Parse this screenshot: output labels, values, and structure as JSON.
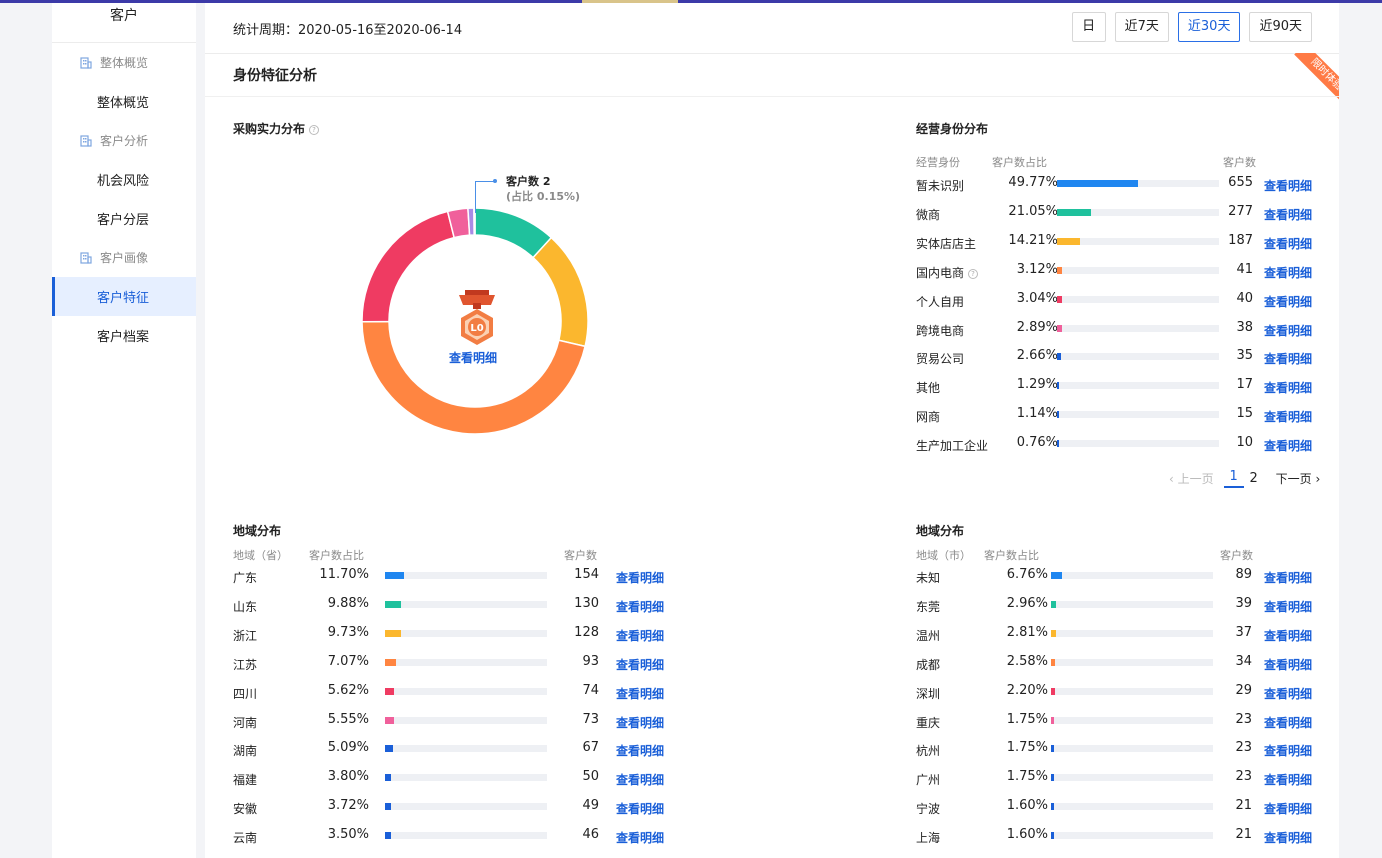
{
  "sidebar": {
    "title": "客户",
    "items": [
      {
        "label": "整体概览",
        "type": "group"
      },
      {
        "label": "整体概览",
        "type": "link"
      },
      {
        "label": "客户分析",
        "type": "group"
      },
      {
        "label": "机会风险",
        "type": "link"
      },
      {
        "label": "客户分层",
        "type": "link"
      },
      {
        "label": "客户画像",
        "type": "group"
      },
      {
        "label": "客户特征",
        "type": "link",
        "active": true
      },
      {
        "label": "客户档案",
        "type": "link"
      }
    ]
  },
  "header": {
    "period_label": "统计周期：2020-05-16至2020-06-14",
    "buttons": [
      "日",
      "近7天",
      "近30天",
      "近90天"
    ],
    "active_button": "近30天"
  },
  "section": {
    "title": "身份特征分析",
    "ribbon": "限时体验"
  },
  "purchase": {
    "title": "采购实力分布",
    "callout_count": "客户数 2",
    "callout_ratio": "(占比 0.15%)",
    "center_link": "查看明细",
    "badge_text": "L0"
  },
  "chart_data": {
    "type": "pie",
    "title": "采购实力分布",
    "slices": [
      {
        "color": "#1fc19d",
        "value": 11.8
      },
      {
        "color": "#fbb72e",
        "value": 16.8
      },
      {
        "color": "#ff8541",
        "value": 46.3
      },
      {
        "color": "#ef3b62",
        "value": 21.2
      },
      {
        "color": "#f0609b",
        "value": 2.9
      },
      {
        "color": "#a98be5",
        "value": 0.85
      },
      {
        "color": "#4a8fe7",
        "value": 0.15
      }
    ]
  },
  "identity": {
    "title": "经营身份分布",
    "headers": {
      "name": "经营身份",
      "pct": "客户数占比",
      "count": "客户数"
    },
    "link_label": "查看明细",
    "rows": [
      {
        "name": "暂未识别",
        "pct": "49.77%",
        "ratio": 0.4977,
        "count": "655",
        "color": "#1f86f0"
      },
      {
        "name": "微商",
        "pct": "21.05%",
        "ratio": 0.2105,
        "count": "277",
        "color": "#1fc19d"
      },
      {
        "name": "实体店店主",
        "pct": "14.21%",
        "ratio": 0.1421,
        "count": "187",
        "color": "#fbb72e"
      },
      {
        "name": "国内电商",
        "pct": "3.12%",
        "ratio": 0.0312,
        "count": "41",
        "color": "#ff8541",
        "info": true
      },
      {
        "name": "个人自用",
        "pct": "3.04%",
        "ratio": 0.0304,
        "count": "40",
        "color": "#ef3b62"
      },
      {
        "name": "跨境电商",
        "pct": "2.89%",
        "ratio": 0.0289,
        "count": "38",
        "color": "#f0609b"
      },
      {
        "name": "贸易公司",
        "pct": "2.66%",
        "ratio": 0.0266,
        "count": "35",
        "color": "#1a5fd8"
      },
      {
        "name": "其他",
        "pct": "1.29%",
        "ratio": 0.0129,
        "count": "17",
        "color": "#1a5fd8"
      },
      {
        "name": "网商",
        "pct": "1.14%",
        "ratio": 0.0114,
        "count": "15",
        "color": "#1a5fd8"
      },
      {
        "name": "生产加工企业",
        "pct": "0.76%",
        "ratio": 0.0076,
        "count": "10",
        "color": "#1a5fd8"
      }
    ],
    "pager": {
      "prev": "上一页",
      "pages": [
        "1",
        "2"
      ],
      "current": "1",
      "next": "下一页"
    }
  },
  "province": {
    "title": "地域分布",
    "headers": {
      "name": "地域（省）",
      "pct": "客户数占比",
      "count": "客户数"
    },
    "link_label": "查看明细",
    "rows": [
      {
        "name": "广东",
        "pct": "11.70%",
        "ratio": 0.117,
        "count": "154",
        "color": "#1f86f0"
      },
      {
        "name": "山东",
        "pct": "9.88%",
        "ratio": 0.0988,
        "count": "130",
        "color": "#1fc19d"
      },
      {
        "name": "浙江",
        "pct": "9.73%",
        "ratio": 0.0973,
        "count": "128",
        "color": "#fbb72e"
      },
      {
        "name": "江苏",
        "pct": "7.07%",
        "ratio": 0.0707,
        "count": "93",
        "color": "#ff8541"
      },
      {
        "name": "四川",
        "pct": "5.62%",
        "ratio": 0.0562,
        "count": "74",
        "color": "#ef3b62"
      },
      {
        "name": "河南",
        "pct": "5.55%",
        "ratio": 0.0555,
        "count": "73",
        "color": "#f0609b"
      },
      {
        "name": "湖南",
        "pct": "5.09%",
        "ratio": 0.0509,
        "count": "67",
        "color": "#1a5fd8"
      },
      {
        "name": "福建",
        "pct": "3.80%",
        "ratio": 0.038,
        "count": "50",
        "color": "#1a5fd8"
      },
      {
        "name": "安徽",
        "pct": "3.72%",
        "ratio": 0.0372,
        "count": "49",
        "color": "#1a5fd8"
      },
      {
        "name": "云南",
        "pct": "3.50%",
        "ratio": 0.035,
        "count": "46",
        "color": "#1a5fd8"
      }
    ]
  },
  "city": {
    "title": "地域分布",
    "headers": {
      "name": "地域（市）",
      "pct": "客户数占比",
      "count": "客户数"
    },
    "link_label": "查看明细",
    "rows": [
      {
        "name": "未知",
        "pct": "6.76%",
        "ratio": 0.0676,
        "count": "89",
        "color": "#1f86f0"
      },
      {
        "name": "东莞",
        "pct": "2.96%",
        "ratio": 0.0296,
        "count": "39",
        "color": "#1fc19d"
      },
      {
        "name": "温州",
        "pct": "2.81%",
        "ratio": 0.0281,
        "count": "37",
        "color": "#fbb72e"
      },
      {
        "name": "成都",
        "pct": "2.58%",
        "ratio": 0.0258,
        "count": "34",
        "color": "#ff8541"
      },
      {
        "name": "深圳",
        "pct": "2.20%",
        "ratio": 0.022,
        "count": "29",
        "color": "#ef3b62"
      },
      {
        "name": "重庆",
        "pct": "1.75%",
        "ratio": 0.0175,
        "count": "23",
        "color": "#f0609b"
      },
      {
        "name": "杭州",
        "pct": "1.75%",
        "ratio": 0.0175,
        "count": "23",
        "color": "#1a5fd8"
      },
      {
        "name": "广州",
        "pct": "1.75%",
        "ratio": 0.0175,
        "count": "23",
        "color": "#1a5fd8"
      },
      {
        "name": "宁波",
        "pct": "1.60%",
        "ratio": 0.016,
        "count": "21",
        "color": "#1a5fd8"
      },
      {
        "name": "上海",
        "pct": "1.60%",
        "ratio": 0.016,
        "count": "21",
        "color": "#1a5fd8"
      }
    ]
  }
}
